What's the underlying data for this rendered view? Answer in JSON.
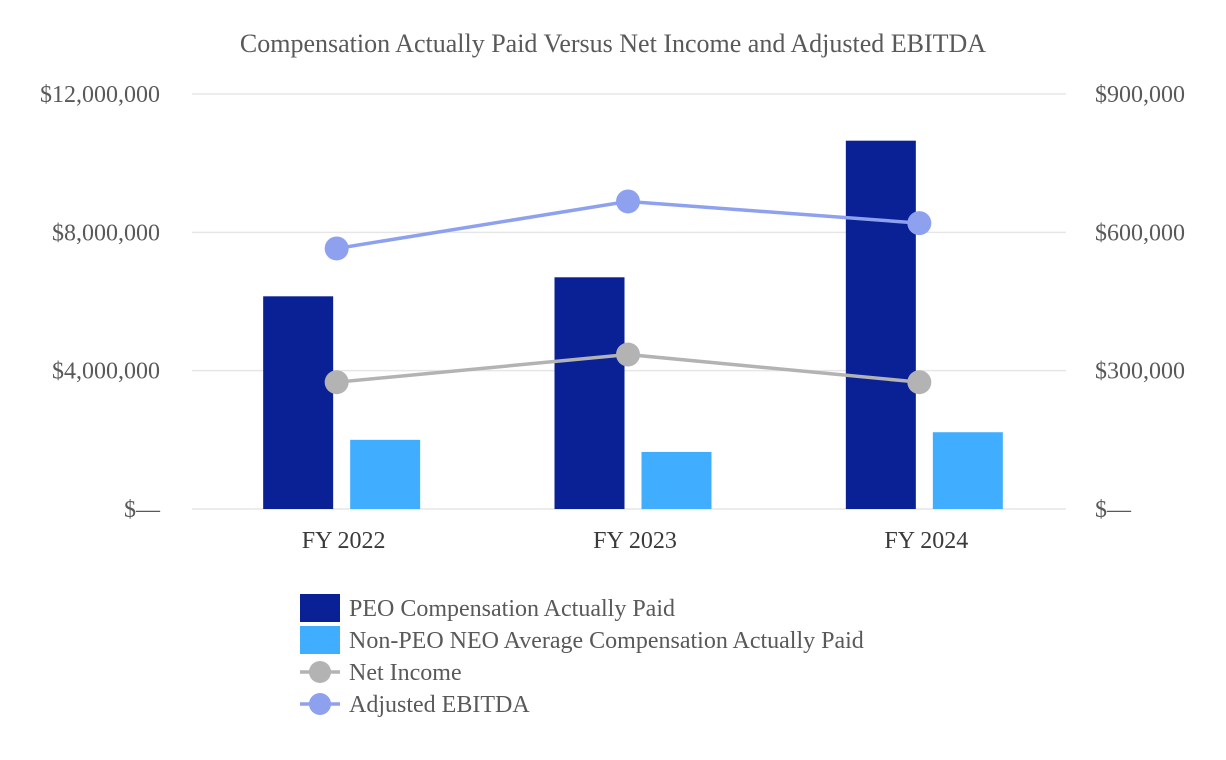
{
  "chart_data": {
    "type": "bar",
    "title": "Compensation Actually Paid Versus Net Income and Adjusted EBITDA",
    "categories": [
      "FY 2022",
      "FY 2023",
      "FY 2024"
    ],
    "y_left": {
      "ylim": [
        0,
        12000000
      ],
      "ticks": [
        0,
        4000000,
        8000000,
        12000000
      ],
      "tick_labels": [
        "$—",
        "$4,000,000",
        "$8,000,000",
        "$12,000,000"
      ]
    },
    "y_right": {
      "ylim": [
        0,
        900000
      ],
      "ticks": [
        0,
        300000,
        600000,
        900000
      ],
      "tick_labels": [
        "$—",
        "$300,000",
        "$600,000",
        "$900,000"
      ]
    },
    "series": [
      {
        "name": "PEO Compensation Actually Paid",
        "kind": "bar",
        "axis": "left",
        "color": "#0a2196",
        "values": [
          6150000,
          6700000,
          10650000
        ]
      },
      {
        "name": "Non-PEO NEO Average Compensation Actually Paid",
        "kind": "bar",
        "axis": "left",
        "color": "#40adff",
        "values": [
          2000000,
          1650000,
          2220000
        ]
      },
      {
        "name": "Net Income",
        "kind": "line",
        "axis": "right",
        "color": "#b3b3b3",
        "values": [
          275000,
          335000,
          275000
        ]
      },
      {
        "name": "Adjusted EBITDA",
        "kind": "line",
        "axis": "right",
        "color": "#8ea1ef",
        "values": [
          565000,
          667000,
          620000
        ]
      }
    ],
    "legend": "bottom"
  }
}
